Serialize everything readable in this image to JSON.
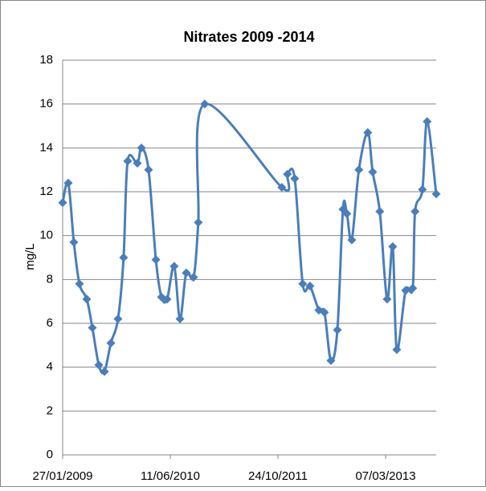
{
  "chart_data": {
    "type": "line",
    "title": "Nitrates 2009 -2014",
    "y_label": "mg/L",
    "x": [
      "2009-01-27",
      "2009-02-22",
      "2009-03-20",
      "2009-04-15",
      "2009-05-19",
      "2009-06-14",
      "2009-07-14",
      "2009-08-09",
      "2009-09-08",
      "2009-10-11",
      "2009-11-06",
      "2009-11-25",
      "2010-01-09",
      "2010-01-28",
      "2010-03-02",
      "2010-04-05",
      "2010-05-01",
      "2010-05-27",
      "2010-06-29",
      "2010-07-26",
      "2010-08-24",
      "2010-09-27",
      "2010-10-19",
      "2010-11-18",
      "2011-11-11",
      "2011-12-07",
      "2012-01-10",
      "2012-02-16",
      "2012-03-21",
      "2012-05-01",
      "2012-05-27",
      "2012-06-26",
      "2012-07-26",
      "2012-08-21",
      "2012-09-08",
      "2012-10-01",
      "2012-11-03",
      "2012-12-14",
      "2013-01-06",
      "2013-02-08",
      "2013-03-14",
      "2013-04-09",
      "2013-04-28",
      "2013-06-08",
      "2013-07-11",
      "2013-07-22",
      "2013-08-25",
      "2013-09-16",
      "2013-10-28"
    ],
    "series": [
      {
        "name": "Nitrates",
        "color": "#4a7ebb",
        "values": [
          11.5,
          12.4,
          9.7,
          7.8,
          7.1,
          5.8,
          4.1,
          3.8,
          5.1,
          6.2,
          9.0,
          13.4,
          13.3,
          14.0,
          13.0,
          8.9,
          7.2,
          7.1,
          8.6,
          6.2,
          8.3,
          8.1,
          10.6,
          16.0,
          12.2,
          12.8,
          12.6,
          7.8,
          7.7,
          6.6,
          6.5,
          4.3,
          5.7,
          11.2,
          11.0,
          9.8,
          13.0,
          14.7,
          12.9,
          11.1,
          7.1,
          9.5,
          4.8,
          7.5,
          7.6,
          11.1,
          12.1,
          15.2,
          11.9
        ]
      }
    ],
    "xlim": [
      "2009-01-27",
      "2013-10-28"
    ],
    "xticks": [
      {
        "value": "2009-01-27",
        "label": "27/01/2009"
      },
      {
        "value": "2010-06-11",
        "label": "11/06/2010"
      },
      {
        "value": "2011-10-24",
        "label": "24/10/2011"
      },
      {
        "value": "2013-03-07",
        "label": "07/03/2013"
      }
    ],
    "ylim": [
      0,
      18
    ],
    "yticks": [
      0,
      2,
      4,
      6,
      8,
      10,
      12,
      14,
      16,
      18
    ],
    "grid": true
  }
}
